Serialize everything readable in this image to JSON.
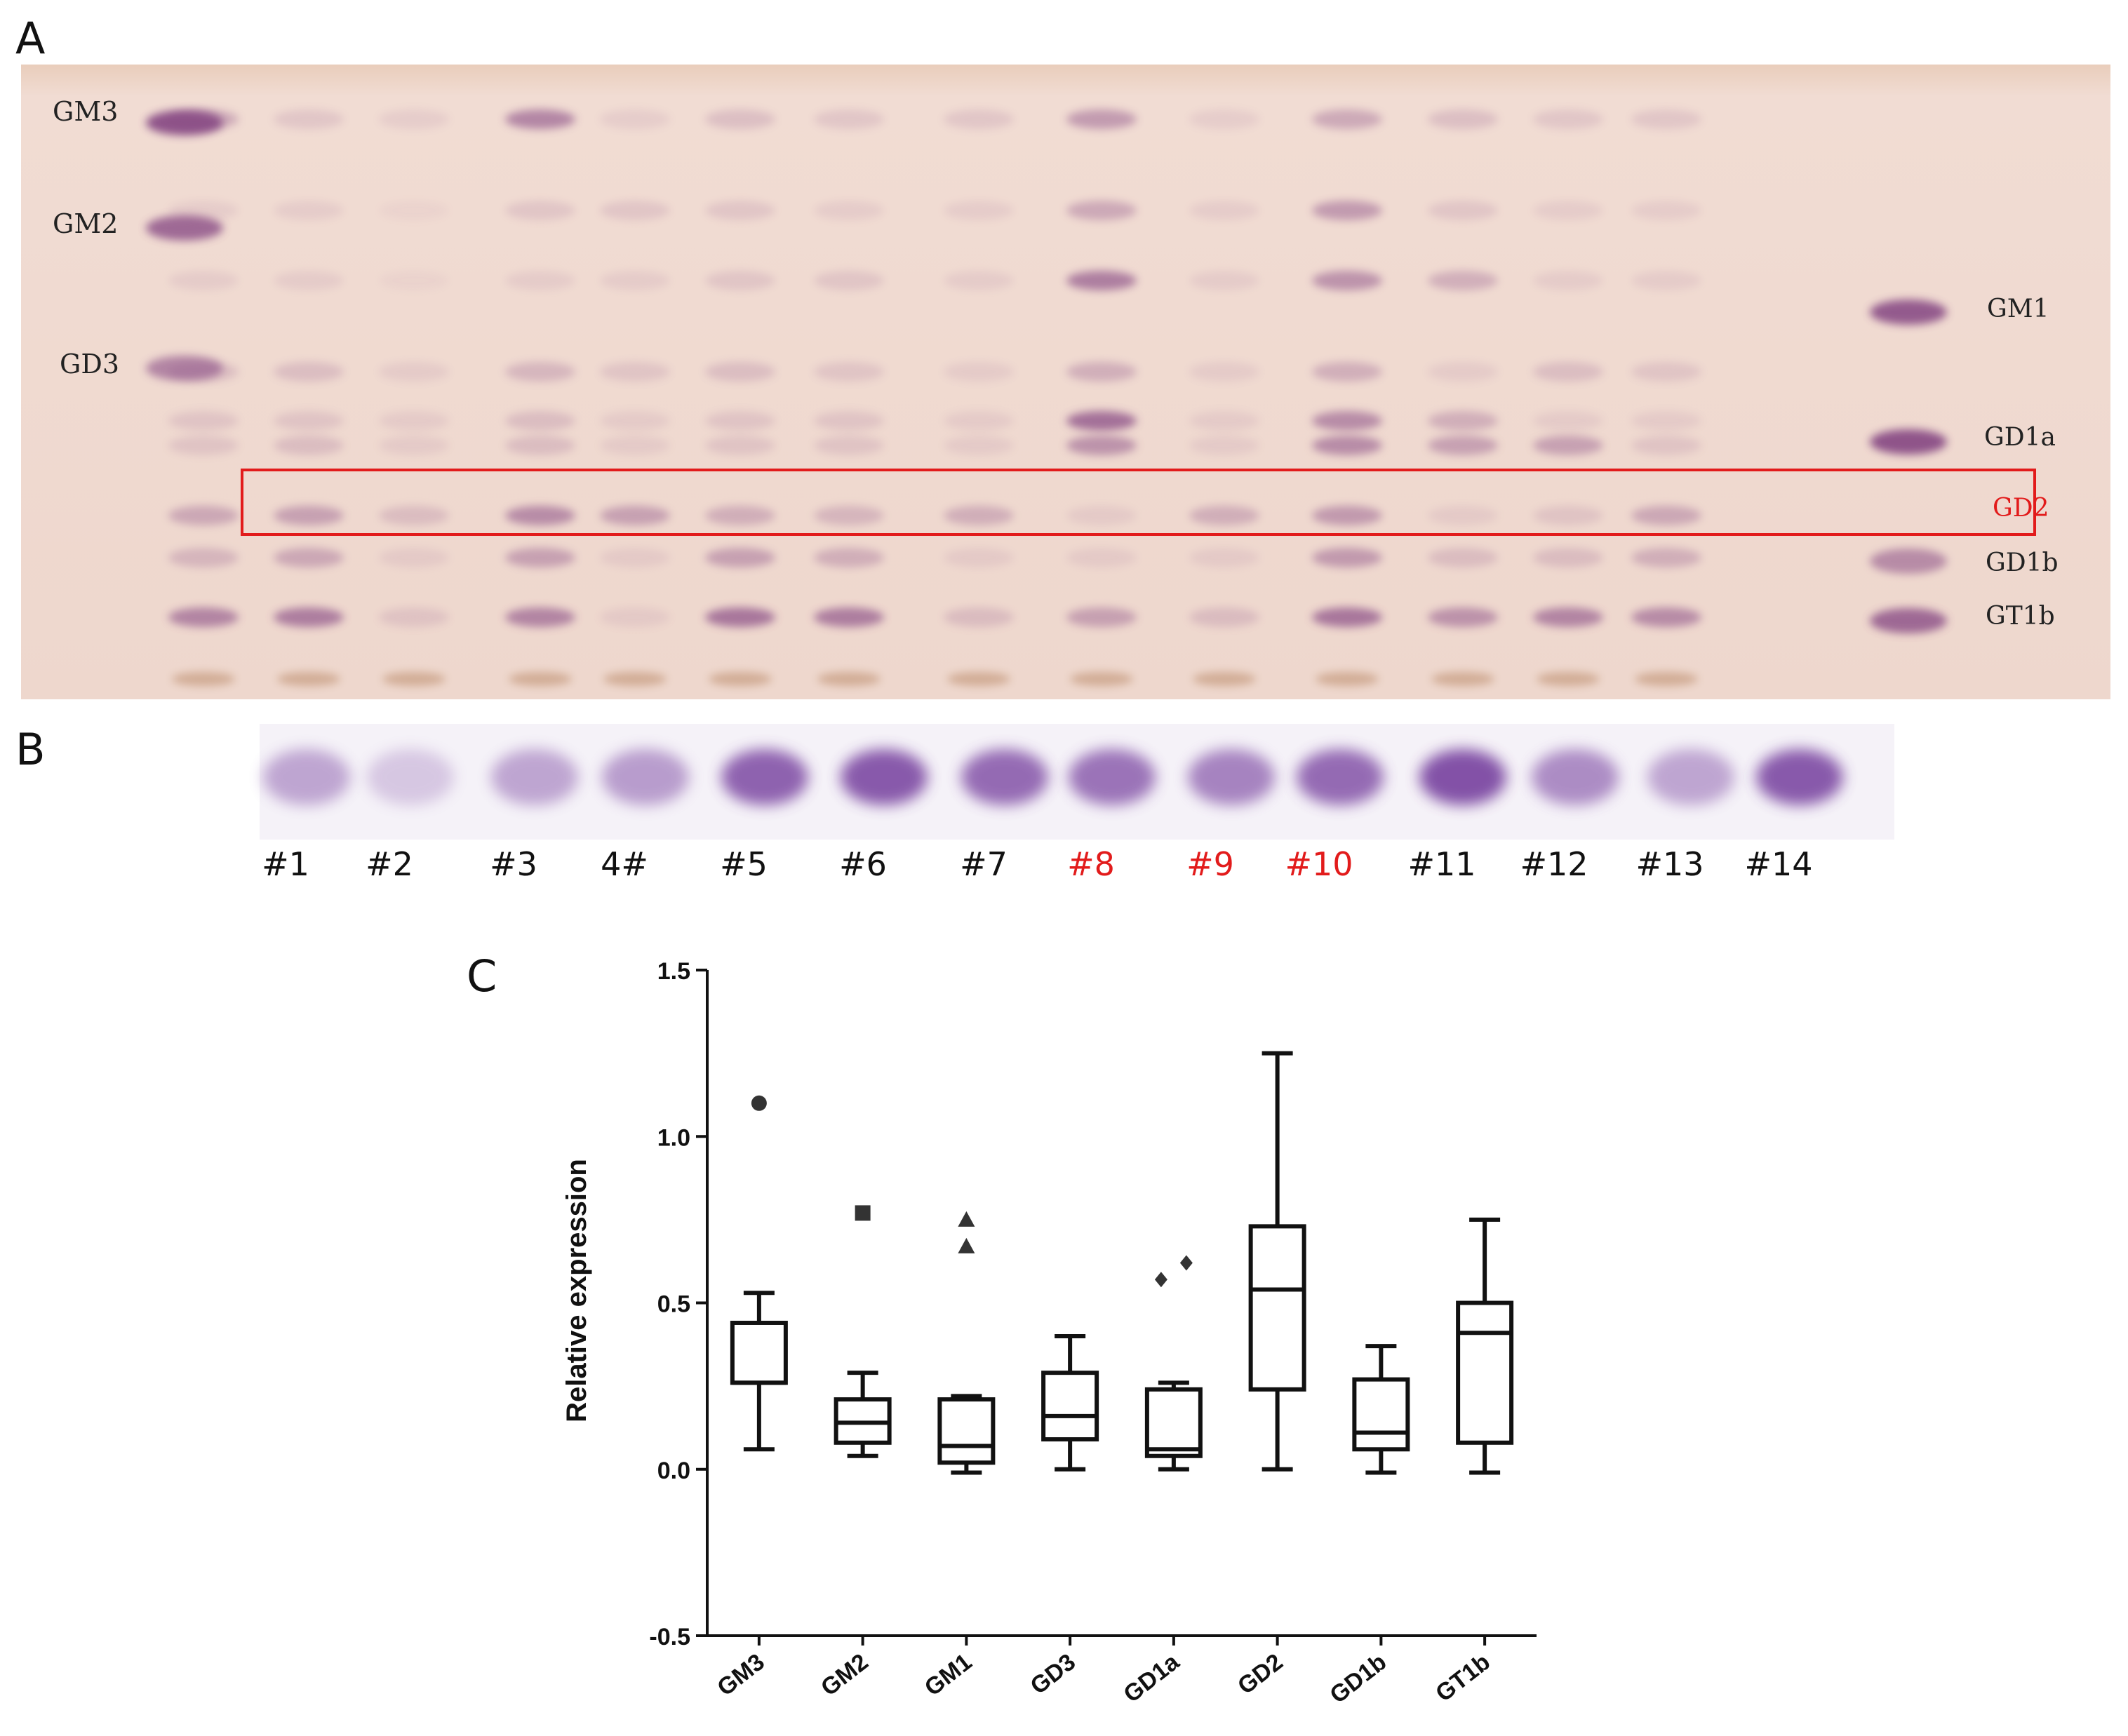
{
  "panels": {
    "a": "A",
    "b": "B",
    "c": "C"
  },
  "tlc": {
    "left_standards": [
      "GM3",
      "GM2",
      "GD3"
    ],
    "right_standards": [
      "GM1",
      "GD1a",
      "GD2",
      "GD1b",
      "GT1b"
    ],
    "highlight_label": "GD2",
    "highlight_color": "#e21b1b"
  },
  "lanes": [
    {
      "label": "#1",
      "highlight": false
    },
    {
      "label": "#2",
      "highlight": false
    },
    {
      "label": "#3",
      "highlight": false
    },
    {
      "label": "4#",
      "highlight": false
    },
    {
      "label": "#5",
      "highlight": false
    },
    {
      "label": "#6",
      "highlight": false
    },
    {
      "label": "#7",
      "highlight": false
    },
    {
      "label": "#8",
      "highlight": true
    },
    {
      "label": "#9",
      "highlight": true
    },
    {
      "label": "#10",
      "highlight": true
    },
    {
      "label": "#11",
      "highlight": false
    },
    {
      "label": "#12",
      "highlight": false
    },
    {
      "label": "#13",
      "highlight": false
    },
    {
      "label": "#14",
      "highlight": false
    }
  ],
  "colors": {
    "plate": "#efd9d0",
    "band": "#8a4e86",
    "strip": "#7d4aa3",
    "text": "#111111",
    "red": "#e21b1b"
  },
  "chart_data": {
    "type": "box",
    "title": "",
    "xlabel": "",
    "ylabel": "Relative expression",
    "ylim": [
      -0.5,
      1.5
    ],
    "yticks": [
      "1.5",
      "1.0",
      "0.5",
      "0.0",
      "-0.5"
    ],
    "categories": [
      "GM3",
      "GM2",
      "GM1",
      "GD3",
      "GD1a",
      "GD2",
      "GD1b",
      "GT1b"
    ],
    "boxes": [
      {
        "min": 0.06,
        "q1": 0.26,
        "median": 0.26,
        "q3": 0.44,
        "max": 0.53,
        "outliers": [
          1.1
        ],
        "marker": "circle"
      },
      {
        "min": 0.04,
        "q1": 0.08,
        "median": 0.14,
        "q3": 0.21,
        "max": 0.29,
        "outliers": [
          0.77
        ],
        "marker": "square"
      },
      {
        "min": -0.01,
        "q1": 0.02,
        "median": 0.07,
        "q3": 0.21,
        "max": 0.22,
        "outliers": [
          0.67,
          0.75
        ],
        "marker": "triangle"
      },
      {
        "min": 0.0,
        "q1": 0.09,
        "median": 0.16,
        "q3": 0.29,
        "max": 0.4,
        "outliers": [],
        "marker": "none"
      },
      {
        "min": 0.0,
        "q1": 0.04,
        "median": 0.06,
        "q3": 0.24,
        "max": 0.26,
        "outliers": [
          0.57,
          0.62
        ],
        "marker": "diamond"
      },
      {
        "min": 0.0,
        "q1": 0.24,
        "median": 0.54,
        "q3": 0.73,
        "max": 1.25,
        "outliers": [],
        "marker": "none"
      },
      {
        "min": -0.01,
        "q1": 0.06,
        "median": 0.11,
        "q3": 0.27,
        "max": 0.37,
        "outliers": [],
        "marker": "none"
      },
      {
        "min": -0.01,
        "q1": 0.08,
        "median": 0.41,
        "q3": 0.5,
        "max": 0.75,
        "outliers": [],
        "marker": "none"
      }
    ]
  }
}
